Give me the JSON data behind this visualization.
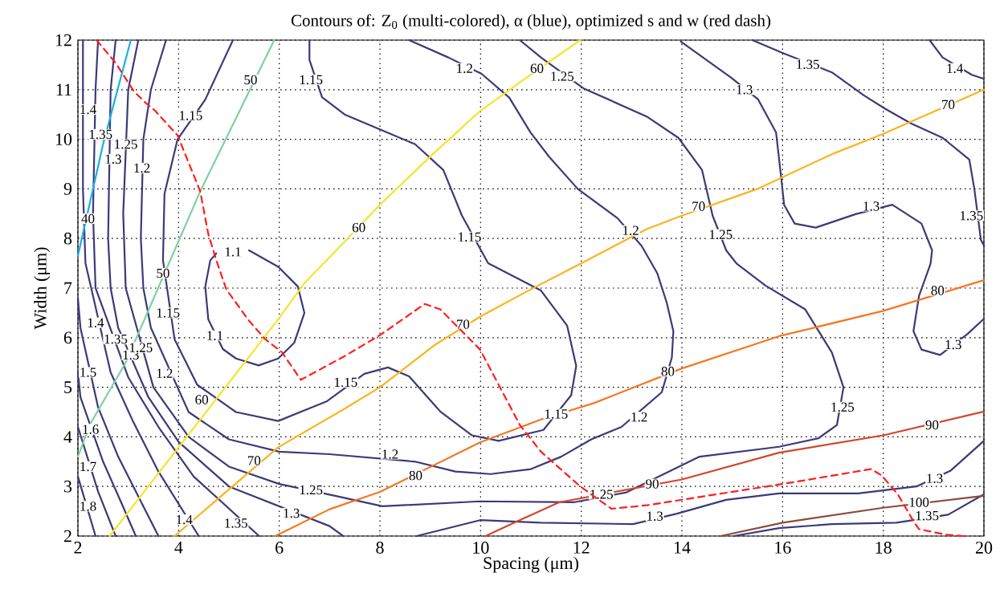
{
  "chart_data": {
    "type": "line",
    "title": "Contours of: Z$_{0}$ (multi-colored), α (blue), optimized s and w (red dash)",
    "xlabel": "Spacing (μm)",
    "ylabel": "Width (μm)",
    "xlim": [
      2,
      20
    ],
    "ylim": [
      2,
      12
    ],
    "xticks": [
      2,
      4,
      6,
      8,
      10,
      12,
      14,
      16,
      18,
      20
    ],
    "yticks": [
      2,
      3,
      4,
      5,
      6,
      7,
      8,
      9,
      10,
      11,
      12
    ],
    "grid": true,
    "series": [
      {
        "color": "#3c3a78",
        "x": [
          5.08,
          4.53,
          3.98,
          3.72,
          3.69,
          3.92,
          4.37,
          5.14,
          5.98,
          6.95,
          7.69,
          8.16,
          8.58,
          9.2,
          9.83,
          10.36,
          11.25,
          11.8,
          11.9,
          11.72,
          11.2,
          10.15,
          9.63,
          9.26,
          8.7,
          8.0,
          7.3,
          6.85,
          6.6,
          6.6,
          null,
          5.4,
          5.98,
          6.37,
          6.5,
          6.3,
          5.98,
          5.59,
          5.14,
          4.88,
          4.59,
          4.53,
          4.63,
          4.75,
          null,
          3.75,
          3.45,
          3.3,
          3.25,
          3.3,
          3.45,
          4.2,
          5.0,
          6.0,
          7.0,
          8.7,
          9.5,
          10.2,
          11.0,
          11.6,
          12.2,
          12.8,
          13.6,
          13.8,
          13.83,
          13.7,
          13.51,
          13.2,
          12.72,
          11.93,
          11.36,
          10.99,
          10.57,
          10.02,
          9.36,
          8.58,
          null,
          3.2,
          3.0,
          2.9,
          2.95,
          3.5,
          4.2,
          5.0,
          6.0,
          7.11,
          8.05,
          9.99,
          11.85,
          12.9,
          14.35,
          15.93,
          16.71,
          17.08,
          17.21,
          16.98,
          16.45,
          15.66,
          15.09,
          14.88,
          14.61,
          14.4,
          13.93,
          13.3,
          12.04,
          11.2,
          10.78,
          null,
          2.75,
          2.65,
          2.6,
          2.65,
          2.8,
          3.4,
          4.0,
          5.0,
          7.0,
          7.27,
          null,
          8.73,
          9.99,
          11.2,
          13.03,
          13.9,
          14.88,
          15.93,
          17.5,
          18.66,
          19.34,
          20.0,
          null,
          13.98,
          14.98,
          15.51,
          15.87,
          15.98,
          16.03,
          16.24,
          16.66,
          17.45,
          18.18,
          18.76,
          18.97,
          18.94,
          18.71,
          18.6,
          18.76,
          19.13,
          19.68,
          20.0,
          null,
          2.4,
          2.35,
          2.3,
          2.35,
          3.0,
          3.6,
          4.3,
          5.6,
          null,
          15.4,
          16.03,
          16.98,
          17.61,
          18.03,
          18.55,
          19.18,
          19.71,
          19.81,
          19.94,
          20.0,
          null,
          15.03,
          15.93,
          16.98,
          18.26,
          19.29,
          20.0,
          null,
          2.1,
          2.1,
          2.15,
          2.65,
          3.1,
          3.6,
          4.4,
          null,
          18.92,
          19.18,
          19.76,
          20.0,
          null,
          2.0,
          2.05,
          2.4,
          2.8,
          3.3,
          3.6,
          null,
          2.0,
          2.05,
          2.5,
          2.85,
          3.15,
          null,
          2.0,
          2.4,
          2.75,
          null,
          2.0,
          2.35
        ],
        "values": [
          12,
          10.8,
          10.0,
          8.9,
          7.56,
          5.97,
          5.05,
          4.5,
          4.32,
          4.72,
          5.27,
          5.4,
          5.22,
          4.51,
          4.03,
          3.92,
          4.14,
          4.84,
          5.43,
          6.24,
          6.95,
          7.5,
          8.46,
          9.38,
          9.9,
          10.2,
          10.5,
          10.85,
          11.6,
          12,
          null,
          7.76,
          7.43,
          7.03,
          6.5,
          5.9,
          5.58,
          5.44,
          5.58,
          5.77,
          6.37,
          7.03,
          7.56,
          7.7,
          null,
          12,
          11,
          10,
          8,
          7,
          6.2,
          4.5,
          3.95,
          3.7,
          3.65,
          3.5,
          3.3,
          3.25,
          3.35,
          3.6,
          3.95,
          4.2,
          4.9,
          5.6,
          6.13,
          6.7,
          7.3,
          7.85,
          8.41,
          9.0,
          9.65,
          10.14,
          10.84,
          11.32,
          11.65,
          12,
          null,
          12,
          11,
          8.5,
          7,
          5.0,
          4.0,
          3.4,
          3.05,
          2.81,
          2.6,
          2.7,
          2.68,
          2.88,
          3.6,
          3.8,
          3.97,
          4.24,
          5.0,
          5.7,
          6.57,
          7.05,
          7.49,
          7.76,
          8.46,
          9.38,
          10.03,
          10.46,
          11.03,
          11.65,
          12,
          null,
          12,
          11,
          8,
          7,
          6.2,
          4.8,
          3.9,
          3.0,
          2.2,
          2.0,
          null,
          2.0,
          2.32,
          2.27,
          2.24,
          2.45,
          2.73,
          2.86,
          2.86,
          3.0,
          3.32,
          3.92,
          null,
          11.97,
          11.24,
          10.81,
          10.14,
          9.16,
          8.68,
          8.3,
          8.22,
          8.49,
          8.68,
          8.3,
          7.76,
          7.49,
          6.84,
          6.13,
          5.76,
          5.65,
          6.08,
          6.38,
          null,
          12,
          11,
          8.5,
          7,
          5.2,
          4.2,
          3.2,
          2.0,
          null,
          12,
          11.73,
          11.35,
          10.89,
          10.62,
          10.32,
          10.03,
          9.59,
          9.0,
          7.97,
          7.86,
          null,
          2.0,
          2.16,
          2.24,
          2.27,
          2.43,
          2.84,
          null,
          12,
          9,
          7.5,
          5.3,
          4.3,
          3.3,
          2.0,
          null,
          12,
          11.65,
          11.3,
          11.22,
          null,
          6.8,
          6.2,
          4.6,
          3.6,
          2.6,
          2.0,
          null,
          5.3,
          4.8,
          3.5,
          2.7,
          2.0,
          null,
          4.2,
          2.9,
          2.0,
          null,
          3.2,
          2.0
        ]
      },
      {
        "color": "#1aafe0",
        "x": [
          2.0,
          2.5,
          3.05
        ],
        "values": [
          7.65,
          9.9,
          12
        ]
      },
      {
        "color": "#7fd1a0",
        "x": [
          2.0,
          2.24,
          2.95,
          4.43,
          5.9
        ],
        "values": [
          3.6,
          4.25,
          5.5,
          8.95,
          12
        ]
      },
      {
        "color": "#f2e62c",
        "x": [
          2.63,
          5.98,
          6.5,
          7.32,
          8.0,
          9.05,
          9.99,
          10.88,
          11.98
        ],
        "values": [
          2.0,
          6.37,
          7.1,
          7.96,
          8.68,
          9.7,
          10.57,
          11.22,
          12
        ]
      },
      {
        "color": "#fbb41c",
        "x": [
          3.92,
          5.98,
          7.32,
          8.0,
          9.1,
          10.0,
          10.99,
          11.98,
          13.3,
          14.0,
          15.5,
          16.98,
          18.0,
          20.0
        ],
        "values": [
          2.0,
          3.79,
          4.58,
          5.0,
          5.86,
          6.43,
          6.97,
          7.49,
          8.19,
          8.46,
          9.0,
          9.7,
          10.11,
          11.0
        ]
      },
      {
        "color": "#f57722",
        "x": [
          5.92,
          7.0,
          8.0,
          9.99,
          11.2,
          12.25,
          14.0,
          15.93,
          18.0,
          20.0
        ],
        "values": [
          2.0,
          2.54,
          2.89,
          3.89,
          4.35,
          4.68,
          5.38,
          6.03,
          6.54,
          7.16
        ]
      },
      {
        "color": "#d5452c",
        "x": [
          10.1,
          10.67,
          11.56,
          14.0,
          15.93,
          18.0,
          20.0
        ],
        "values": [
          2.0,
          2.27,
          2.68,
          3.14,
          3.68,
          4.03,
          4.51
        ]
      },
      {
        "color": "#8c4c3c",
        "x": [
          14.77,
          16.0,
          18.0,
          20.0
        ],
        "values": [
          2.0,
          2.27,
          2.57,
          2.81
        ]
      },
      {
        "color": "#ff1f1f",
        "line_style": "dashed",
        "x": [
          2.37,
          2.75,
          3.11,
          3.34,
          3.53,
          3.98,
          4.43,
          4.59,
          4.75,
          4.95,
          5.4,
          5.72,
          6.05,
          6.43,
          7.32,
          8.0,
          8.89,
          9.2,
          9.99,
          10.78,
          11.2,
          11.98,
          12.6,
          13.3,
          16.0,
          17.76,
          17.97,
          18.29,
          18.6,
          18.71,
          19.23,
          19.6
        ],
        "values": [
          12,
          11.54,
          10.97,
          10.74,
          10.58,
          10.08,
          8.95,
          8.09,
          7.56,
          6.97,
          6.34,
          5.97,
          5.71,
          5.15,
          5.64,
          6.05,
          6.68,
          6.57,
          5.76,
          4.24,
          3.7,
          3.0,
          2.55,
          2.62,
          3.05,
          3.35,
          3.22,
          2.84,
          2.3,
          2.14,
          2.03,
          2.0
        ]
      }
    ],
    "annotations": [
      {
        "text": "1.4",
        "x": 2.2,
        "y": 10.6
      },
      {
        "text": "1.4",
        "x": 2.35,
        "y": 6.3
      },
      {
        "text": "1.4",
        "x": 4.11,
        "y": 2.33
      },
      {
        "text": "1.4",
        "x": 19.42,
        "y": 11.43
      },
      {
        "text": "1.35",
        "x": 2.45,
        "y": 10.1
      },
      {
        "text": "1.35",
        "x": 2.75,
        "y": 5.97
      },
      {
        "text": "1.35",
        "x": 5.14,
        "y": 2.26
      },
      {
        "text": "1.35",
        "x": 16.5,
        "y": 11.51
      },
      {
        "text": "1.35",
        "x": 19.75,
        "y": 8.46
      },
      {
        "text": "1.35",
        "x": 18.87,
        "y": 2.41
      },
      {
        "text": "1.3",
        "x": 2.7,
        "y": 9.6
      },
      {
        "text": "1.3",
        "x": 3.05,
        "y": 5.65
      },
      {
        "text": "1.3",
        "x": 6.24,
        "y": 2.46
      },
      {
        "text": "1.3",
        "x": 13.46,
        "y": 2.4
      },
      {
        "text": "1.3",
        "x": 19.02,
        "y": 3.16
      },
      {
        "text": "1.3",
        "x": 15.24,
        "y": 11.0
      },
      {
        "text": "1.3",
        "x": 17.76,
        "y": 8.65
      },
      {
        "text": "1.3",
        "x": 19.39,
        "y": 5.86
      },
      {
        "text": "1.25",
        "x": 2.95,
        "y": 9.9
      },
      {
        "text": "1.25",
        "x": 3.25,
        "y": 5.8
      },
      {
        "text": "1.25",
        "x": 6.63,
        "y": 2.93
      },
      {
        "text": "1.25",
        "x": 12.4,
        "y": 2.84
      },
      {
        "text": "1.25",
        "x": 17.19,
        "y": 4.6
      },
      {
        "text": "1.25",
        "x": 14.77,
        "y": 8.08
      },
      {
        "text": "1.25",
        "x": 11.62,
        "y": 11.27
      },
      {
        "text": "1.2",
        "x": 3.27,
        "y": 9.42
      },
      {
        "text": "1.2",
        "x": 3.72,
        "y": 5.28
      },
      {
        "text": "1.2",
        "x": 8.2,
        "y": 3.65
      },
      {
        "text": "1.2",
        "x": 13.15,
        "y": 4.4
      },
      {
        "text": "1.2",
        "x": 12.98,
        "y": 8.16
      },
      {
        "text": "1.2",
        "x": 9.68,
        "y": 11.43
      },
      {
        "text": "1.15",
        "x": 4.24,
        "y": 10.48
      },
      {
        "text": "1.15",
        "x": 3.79,
        "y": 6.5
      },
      {
        "text": "1.15",
        "x": 7.32,
        "y": 5.1
      },
      {
        "text": "1.15",
        "x": 11.5,
        "y": 4.46
      },
      {
        "text": "1.15",
        "x": 9.78,
        "y": 8.03
      },
      {
        "text": "1.15",
        "x": 6.63,
        "y": 11.2
      },
      {
        "text": "1.1",
        "x": 5.08,
        "y": 7.73
      },
      {
        "text": "1.1",
        "x": 4.72,
        "y": 6.04
      },
      {
        "text": "1.5",
        "x": 2.2,
        "y": 5.3
      },
      {
        "text": "1.6",
        "x": 2.25,
        "y": 4.15
      },
      {
        "text": "1.7",
        "x": 2.2,
        "y": 3.4
      },
      {
        "text": "1.8",
        "x": 2.2,
        "y": 2.6
      },
      {
        "text": "40",
        "x": 2.2,
        "y": 8.4
      },
      {
        "text": "50",
        "x": 3.69,
        "y": 7.3
      },
      {
        "text": "50",
        "x": 5.43,
        "y": 11.2
      },
      {
        "text": "60",
        "x": 4.46,
        "y": 4.75
      },
      {
        "text": "60",
        "x": 7.58,
        "y": 8.22
      },
      {
        "text": "60",
        "x": 11.12,
        "y": 11.43
      },
      {
        "text": "70",
        "x": 5.5,
        "y": 3.52
      },
      {
        "text": "70",
        "x": 9.65,
        "y": 6.27
      },
      {
        "text": "70",
        "x": 14.33,
        "y": 8.65
      },
      {
        "text": "70",
        "x": 19.29,
        "y": 10.7
      },
      {
        "text": "80",
        "x": 8.71,
        "y": 3.22
      },
      {
        "text": "80",
        "x": 13.72,
        "y": 5.32
      },
      {
        "text": "80",
        "x": 19.08,
        "y": 6.95
      },
      {
        "text": "90",
        "x": 13.41,
        "y": 3.05
      },
      {
        "text": "90",
        "x": 18.97,
        "y": 4.24
      },
      {
        "text": "100",
        "x": 18.71,
        "y": 2.68
      }
    ]
  }
}
